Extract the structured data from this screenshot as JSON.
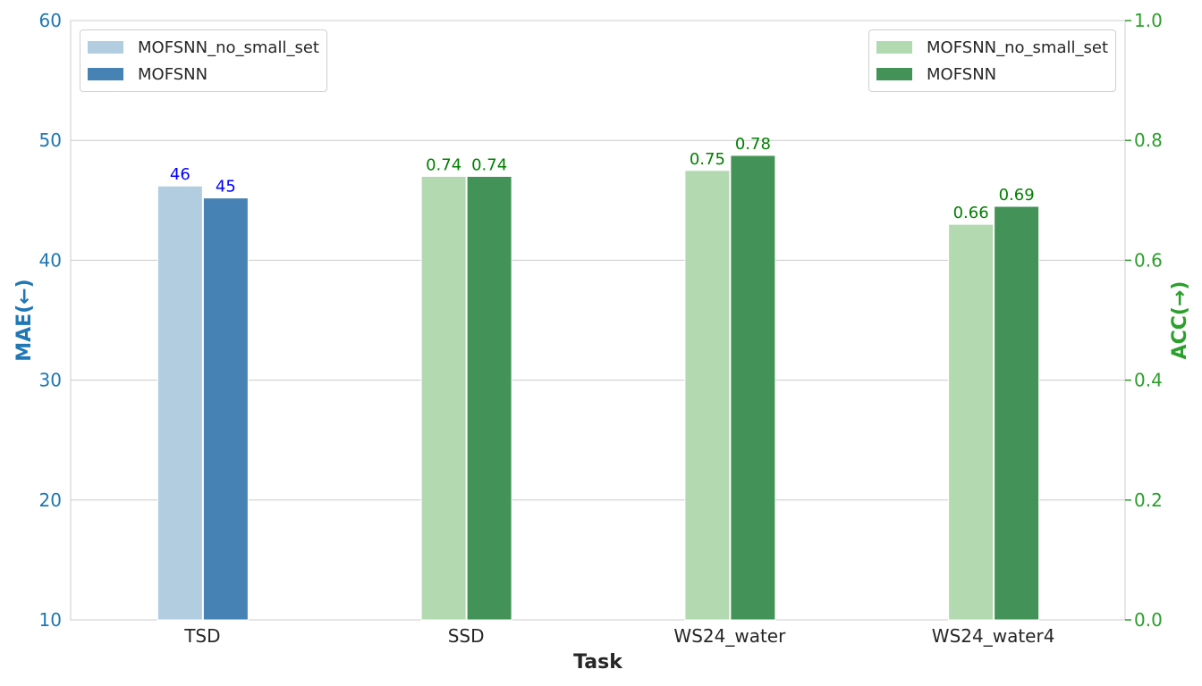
{
  "chart_data": {
    "type": "bar",
    "categories": [
      "TSD",
      "SSD",
      "WS24_water",
      "WS24_water4"
    ],
    "xlabel": "Task",
    "left_axis": {
      "label": "MAE(←)",
      "ylim": [
        10,
        60
      ],
      "ticks": [
        "10",
        "20",
        "30",
        "40",
        "50",
        "60"
      ],
      "color": "#1f77b4"
    },
    "right_axis": {
      "label": "ACC(→)",
      "ylim": [
        0.0,
        1.0
      ],
      "ticks": [
        "0.0",
        "0.2",
        "0.4",
        "0.6",
        "0.8",
        "1.0"
      ],
      "color": "#2ca02c"
    },
    "grid": true,
    "series": [
      {
        "name": "MOFSNN_no_small_set",
        "axis": "left",
        "color": "#b3cde0",
        "values": [
          46.2,
          null,
          null,
          null
        ],
        "labels": [
          "46",
          "",
          "",
          ""
        ],
        "label_color": "#0000ff"
      },
      {
        "name": "MOFSNN",
        "axis": "left",
        "color": "#4682b4",
        "values": [
          45.2,
          null,
          null,
          null
        ],
        "labels": [
          "45",
          "",
          "",
          ""
        ],
        "label_color": "#0000ff"
      },
      {
        "name": "MOFSNN_no_small_set",
        "axis": "right",
        "color": "#b3d9b0",
        "values": [
          null,
          0.74,
          0.75,
          0.66
        ],
        "labels": [
          "",
          "0.74",
          "0.75",
          "0.66"
        ],
        "label_color": "#008000"
      },
      {
        "name": "MOFSNN",
        "axis": "right",
        "color": "#439358",
        "values": [
          null,
          0.74,
          0.775,
          0.69
        ],
        "labels": [
          "",
          "0.74",
          "0.78",
          "0.69"
        ],
        "label_color": "#008000"
      }
    ],
    "legends": [
      {
        "placement": "upper-left",
        "entries": [
          {
            "label": "MOFSNN_no_small_set",
            "color": "#b3cde0"
          },
          {
            "label": "MOFSNN",
            "color": "#4682b4"
          }
        ]
      },
      {
        "placement": "upper-right",
        "entries": [
          {
            "label": "MOFSNN_no_small_set",
            "color": "#b3d9b0"
          },
          {
            "label": "MOFSNN",
            "color": "#439358"
          }
        ]
      }
    ]
  }
}
